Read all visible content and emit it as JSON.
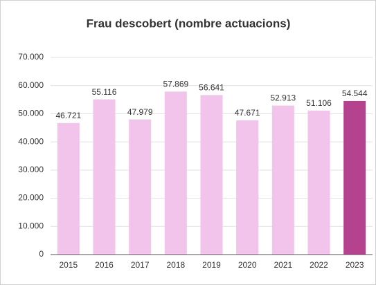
{
  "chart_data": {
    "type": "bar",
    "title": "Frau descobert (nombre actuacions)",
    "categories": [
      "2015",
      "2016",
      "2017",
      "2018",
      "2019",
      "2020",
      "2021",
      "2022",
      "2023"
    ],
    "values": [
      46721,
      55116,
      47979,
      57869,
      56641,
      47671,
      52913,
      51106,
      54544
    ],
    "value_labels": [
      "46.721",
      "55.116",
      "47.979",
      "57.869",
      "56.641",
      "47.671",
      "52.913",
      "51.106",
      "54.544"
    ],
    "colors": [
      "#f2c4ec",
      "#f2c4ec",
      "#f2c4ec",
      "#f2c4ec",
      "#f2c4ec",
      "#f2c4ec",
      "#f2c4ec",
      "#f2c4ec",
      "#b5428f"
    ],
    "ylim": [
      0,
      70000
    ],
    "yticks": [
      0,
      {
        "value": 10000,
        "label": "10.000"
      },
      {
        "value": 20000,
        "label": "20.000"
      },
      {
        "value": 30000,
        "label": "30.000"
      },
      {
        "value": 40000,
        "label": "40.000"
      },
      {
        "value": 50000,
        "label": "50.000"
      },
      {
        "value": 60000,
        "label": "60.000"
      },
      {
        "value": 70000,
        "label": "70.000"
      }
    ],
    "grid": true
  }
}
